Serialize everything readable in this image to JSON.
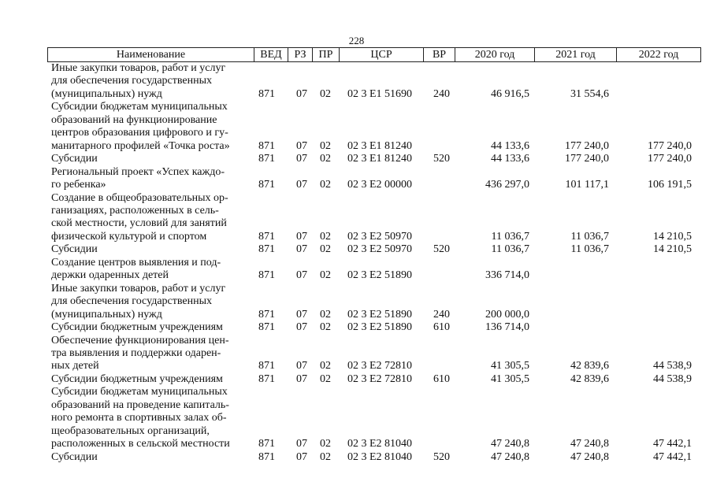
{
  "page_number": "228",
  "header": [
    "Наименование",
    "ВЕД",
    "РЗ",
    "ПР",
    "ЦСР",
    "ВР",
    "2020 год",
    "2021 год",
    "2022 год"
  ],
  "rows": [
    {
      "name": "Иные закупки товаров, работ и услуг\nдля обеспечения государственных\n(муниципальных) нужд",
      "ved": "871",
      "rz": "07",
      "pr": "02",
      "csr": "02 3 E1 51690",
      "vr": "240",
      "y2020": "46 916,5",
      "y2021": "31 554,6",
      "y2022": ""
    },
    {
      "name": "Субсидии бюджетам муниципальных\nобразований на функционирование\nцентров образования цифрового и гу-\nманитарного профилей «Точка роста»",
      "ved": "871",
      "rz": "07",
      "pr": "02",
      "csr": "02 3 E1 81240",
      "vr": "",
      "y2020": "44 133,6",
      "y2021": "177 240,0",
      "y2022": "177 240,0"
    },
    {
      "name": "Субсидии",
      "ved": "871",
      "rz": "07",
      "pr": "02",
      "csr": "02 3 E1 81240",
      "vr": "520",
      "y2020": "44 133,6",
      "y2021": "177 240,0",
      "y2022": "177 240,0"
    },
    {
      "name": "Региональный проект «Успех каждо-\nго ребенка»",
      "ved": "871",
      "rz": "07",
      "pr": "02",
      "csr": "02 3 E2 00000",
      "vr": "",
      "y2020": "436 297,0",
      "y2021": "101 117,1",
      "y2022": "106 191,5"
    },
    {
      "name": "Создание в общеобразовательных ор-\nганизациях, расположенных в сель-\nской местности, условий для занятий\nфизической культурой и спортом",
      "ved": "871",
      "rz": "07",
      "pr": "02",
      "csr": "02 3 E2 50970",
      "vr": "",
      "y2020": "11 036,7",
      "y2021": "11 036,7",
      "y2022": "14 210,5"
    },
    {
      "name": "Субсидии",
      "ved": "871",
      "rz": "07",
      "pr": "02",
      "csr": "02 3 E2 50970",
      "vr": "520",
      "y2020": "11 036,7",
      "y2021": "11 036,7",
      "y2022": "14 210,5"
    },
    {
      "name": "Создание центров выявления и под-\nдержки одаренных детей",
      "ved": "871",
      "rz": "07",
      "pr": "02",
      "csr": "02 3 E2 51890",
      "vr": "",
      "y2020": "336 714,0",
      "y2021": "",
      "y2022": ""
    },
    {
      "name": "Иные закупки товаров, работ и услуг\nдля обеспечения государственных\n(муниципальных) нужд",
      "ved": "871",
      "rz": "07",
      "pr": "02",
      "csr": "02 3 E2 51890",
      "vr": "240",
      "y2020": "200 000,0",
      "y2021": "",
      "y2022": ""
    },
    {
      "name": "Субсидии бюджетным учреждениям",
      "ved": "871",
      "rz": "07",
      "pr": "02",
      "csr": "02 3 E2 51890",
      "vr": "610",
      "y2020": "136 714,0",
      "y2021": "",
      "y2022": ""
    },
    {
      "name": "Обеспечение функционирования цен-\nтра выявления и поддержки одарен-\nных детей",
      "ved": "871",
      "rz": "07",
      "pr": "02",
      "csr": "02 3 E2 72810",
      "vr": "",
      "y2020": "41 305,5",
      "y2021": "42 839,6",
      "y2022": "44 538,9"
    },
    {
      "name": "Субсидии бюджетным учреждениям",
      "ved": "871",
      "rz": "07",
      "pr": "02",
      "csr": "02 3 E2 72810",
      "vr": "610",
      "y2020": "41 305,5",
      "y2021": "42 839,6",
      "y2022": "44 538,9"
    },
    {
      "name": "Субсидии бюджетам муниципальных\nобразований на проведение капиталь-\nного ремонта в спортивных залах об-\nщеобразовательных организаций,\nрасположенных в сельской местности",
      "ved": "871",
      "rz": "07",
      "pr": "02",
      "csr": "02 3 E2 81040",
      "vr": "",
      "y2020": "47 240,8",
      "y2021": "47 240,8",
      "y2022": "47 442,1"
    },
    {
      "name": "Субсидии",
      "ved": "871",
      "rz": "07",
      "pr": "02",
      "csr": "02 3 E2 81040",
      "vr": "520",
      "y2020": "47 240,8",
      "y2021": "47 240,8",
      "y2022": "47 442,1"
    }
  ]
}
